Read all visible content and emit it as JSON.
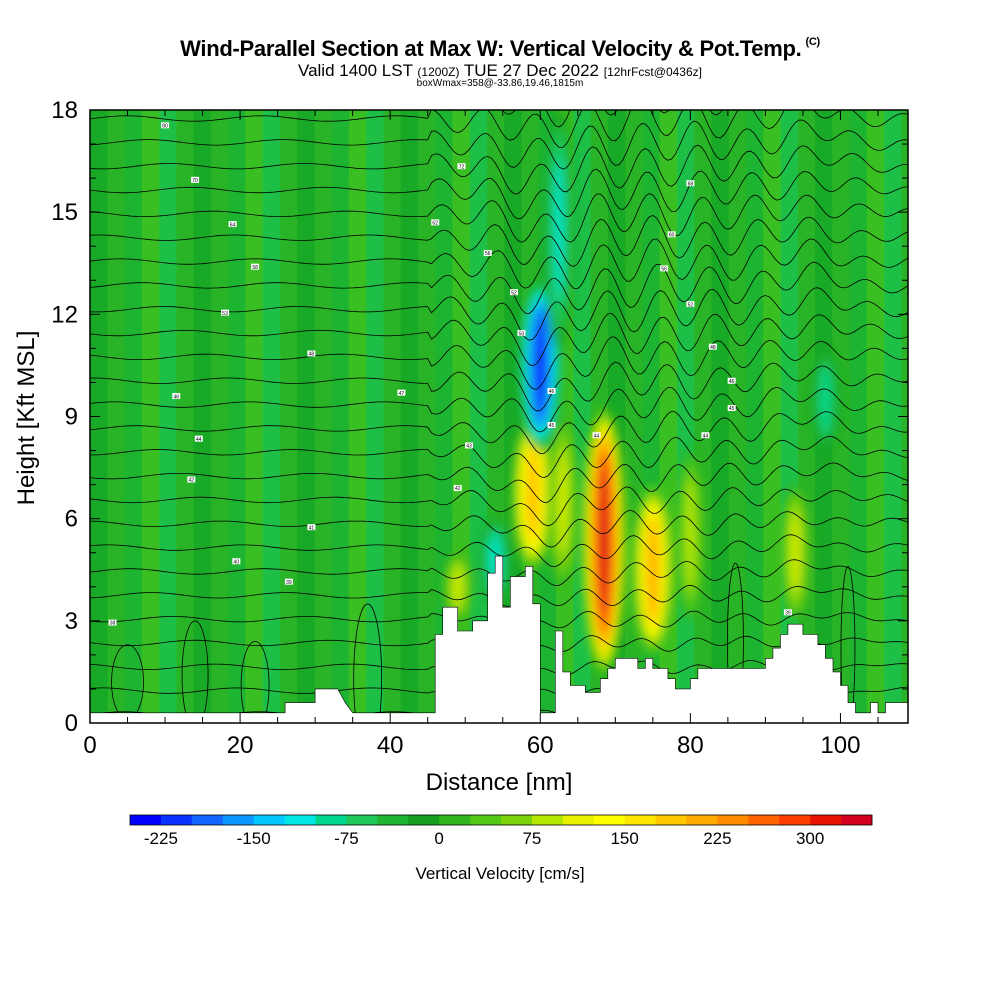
{
  "header": {
    "title": "Wind-Parallel Section at Max W: Vertical Velocity & Pot.Temp.",
    "copyright": "(C)",
    "valid_prefix": "Valid 1400 LST",
    "valid_utc": "(1200Z)",
    "valid_date": "TUE 27 Dec 2022",
    "forecast": "[12hrFcst@0436z]",
    "box_info": "boxWmax=358@-33.86,19.46,1815m"
  },
  "chart_data": {
    "type": "heatmap",
    "title": "Wind-Parallel Section at Max W: Vertical Velocity & Pot.Temp.",
    "xlabel": "Distance [nm]",
    "ylabel": "Height [Kft MSL]",
    "xlim": [
      0,
      109
    ],
    "ylim": [
      0,
      18
    ],
    "xticks": [
      0,
      20,
      40,
      60,
      80,
      100
    ],
    "yticks": [
      0,
      3,
      6,
      9,
      12,
      15,
      18
    ],
    "colorbar": {
      "label": "Vertical Velocity [cm/s]",
      "tick_labels": [
        "-225",
        "-150",
        "-75",
        "0",
        "75",
        "150",
        "225",
        "300"
      ],
      "tick_values": [
        -225,
        -150,
        -75,
        0,
        75,
        150,
        225,
        300
      ],
      "range": [
        -250,
        350
      ],
      "colors": [
        "#0000ff",
        "#0a32ff",
        "#1464ff",
        "#0a96ff",
        "#00c8ff",
        "#00e6e6",
        "#00d68c",
        "#1ec85a",
        "#1eb432",
        "#14a01e",
        "#32b41e",
        "#50c814",
        "#7ad20a",
        "#b4e600",
        "#e6f000",
        "#ffff00",
        "#ffe600",
        "#ffc800",
        "#ffaa00",
        "#ff8c00",
        "#ff6400",
        "#ff3c00",
        "#e61400",
        "#d2001e"
      ]
    },
    "updrafts": [
      {
        "x": 49,
        "z_min": 3,
        "z_max": 5,
        "w": 100
      },
      {
        "x": 59,
        "z_min": 4.5,
        "z_max": 9,
        "w": 200
      },
      {
        "x": 63,
        "z_min": 4,
        "z_max": 9,
        "w": 110
      },
      {
        "x": 68.5,
        "z_min": 1.5,
        "z_max": 9.2,
        "w": 358
      },
      {
        "x": 75,
        "z_min": 2,
        "z_max": 7,
        "w": 220
      },
      {
        "x": 80,
        "z_min": 3,
        "z_max": 8,
        "w": 90
      },
      {
        "x": 94,
        "z_min": 3,
        "z_max": 7,
        "w": 110
      }
    ],
    "downdrafts": [
      {
        "x": 54,
        "z_min": 3.5,
        "z_max": 6,
        "w": -120
      },
      {
        "x": 60,
        "z_min": 8,
        "z_max": 13,
        "w": -230
      },
      {
        "x": 62.5,
        "z_min": 11,
        "z_max": 18,
        "w": -110
      },
      {
        "x": 98,
        "z_min": 8,
        "z_max": 11,
        "w": -100
      }
    ],
    "terrain_profile": [
      [
        0,
        0.3
      ],
      [
        26,
        0.3
      ],
      [
        26,
        0.6
      ],
      [
        30,
        0.6
      ],
      [
        30,
        1.0
      ],
      [
        33,
        1.0
      ],
      [
        34,
        0.6
      ],
      [
        35,
        0.3
      ],
      [
        46,
        0.3
      ],
      [
        46,
        2.6
      ],
      [
        47,
        2.6
      ],
      [
        47,
        3.4
      ],
      [
        49,
        3.4
      ],
      [
        49,
        2.7
      ],
      [
        51,
        2.7
      ],
      [
        51,
        3.0
      ],
      [
        53,
        3.0
      ],
      [
        53,
        4.4
      ],
      [
        54,
        4.4
      ],
      [
        54,
        4.9
      ],
      [
        55,
        4.9
      ],
      [
        55,
        3.4
      ],
      [
        56,
        3.4
      ],
      [
        56,
        4.3
      ],
      [
        58,
        4.3
      ],
      [
        58,
        4.6
      ],
      [
        59,
        4.6
      ],
      [
        59,
        3.5
      ],
      [
        60,
        3.5
      ],
      [
        60,
        0.3
      ],
      [
        62,
        0.3
      ],
      [
        62,
        2.7
      ],
      [
        63,
        2.7
      ],
      [
        63,
        1.5
      ],
      [
        64,
        1.5
      ],
      [
        64,
        1.1
      ],
      [
        66,
        1.1
      ],
      [
        66,
        0.9
      ],
      [
        68,
        0.9
      ],
      [
        68,
        1.3
      ],
      [
        69,
        1.3
      ],
      [
        69,
        1.6
      ],
      [
        70,
        1.6
      ],
      [
        70,
        1.9
      ],
      [
        73,
        1.9
      ],
      [
        73,
        1.6
      ],
      [
        74,
        1.6
      ],
      [
        74,
        1.9
      ],
      [
        75,
        1.9
      ],
      [
        75,
        1.6
      ],
      [
        77,
        1.6
      ],
      [
        77,
        1.3
      ],
      [
        78,
        1.3
      ],
      [
        78,
        1.0
      ],
      [
        80,
        1.0
      ],
      [
        80,
        1.3
      ],
      [
        81,
        1.3
      ],
      [
        81,
        1.6
      ],
      [
        90,
        1.6
      ],
      [
        90,
        1.9
      ],
      [
        91,
        1.9
      ],
      [
        91,
        2.2
      ],
      [
        92,
        2.2
      ],
      [
        92,
        2.6
      ],
      [
        93,
        2.6
      ],
      [
        93,
        2.9
      ],
      [
        95,
        2.9
      ],
      [
        95,
        2.6
      ],
      [
        97,
        2.6
      ],
      [
        97,
        2.3
      ],
      [
        98,
        2.3
      ],
      [
        98,
        1.9
      ],
      [
        99,
        1.9
      ],
      [
        99,
        1.5
      ],
      [
        100,
        1.5
      ],
      [
        100,
        1.1
      ],
      [
        101,
        1.1
      ],
      [
        101,
        0.6
      ],
      [
        102,
        0.6
      ],
      [
        102,
        0.3
      ],
      [
        104,
        0.3
      ],
      [
        104,
        0.6
      ],
      [
        105,
        0.6
      ],
      [
        105,
        0.3
      ],
      [
        106,
        0.3
      ],
      [
        106,
        0.6
      ],
      [
        109,
        0.6
      ]
    ],
    "theta_labels": [
      {
        "x": 3,
        "z": 2.95,
        "text": "38"
      },
      {
        "x": 10,
        "z": 17.55,
        "text": "80"
      },
      {
        "x": 14,
        "z": 15.95,
        "text": "70"
      },
      {
        "x": 19,
        "z": 14.65,
        "text": "64"
      },
      {
        "x": 22,
        "z": 13.4,
        "text": "58"
      },
      {
        "x": 18,
        "z": 12.05,
        "text": "53"
      },
      {
        "x": 29.5,
        "z": 10.85,
        "text": "48"
      },
      {
        "x": 11.5,
        "z": 9.6,
        "text": "46"
      },
      {
        "x": 14.5,
        "z": 8.35,
        "text": "44"
      },
      {
        "x": 13.5,
        "z": 7.15,
        "text": "42"
      },
      {
        "x": 29.5,
        "z": 5.75,
        "text": "41"
      },
      {
        "x": 19.5,
        "z": 4.75,
        "text": "40"
      },
      {
        "x": 26.5,
        "z": 4.15,
        "text": "39"
      },
      {
        "x": 41.5,
        "z": 9.7,
        "text": "47"
      },
      {
        "x": 46,
        "z": 14.7,
        "text": "62"
      },
      {
        "x": 49.5,
        "z": 16.35,
        "text": "72"
      },
      {
        "x": 53,
        "z": 13.8,
        "text": "56"
      },
      {
        "x": 56.5,
        "z": 12.65,
        "text": "52"
      },
      {
        "x": 57.5,
        "z": 11.45,
        "text": "50"
      },
      {
        "x": 61.5,
        "z": 9.75,
        "text": "46"
      },
      {
        "x": 61.5,
        "z": 8.75,
        "text": "45"
      },
      {
        "x": 50.5,
        "z": 8.15,
        "text": "43"
      },
      {
        "x": 49,
        "z": 6.9,
        "text": "42"
      },
      {
        "x": 67.5,
        "z": 8.45,
        "text": "44"
      },
      {
        "x": 80,
        "z": 15.85,
        "text": "68"
      },
      {
        "x": 77.5,
        "z": 14.35,
        "text": "60"
      },
      {
        "x": 76.5,
        "z": 13.35,
        "text": "56"
      },
      {
        "x": 80,
        "z": 12.3,
        "text": "52"
      },
      {
        "x": 83,
        "z": 11.05,
        "text": "48"
      },
      {
        "x": 85.5,
        "z": 10.05,
        "text": "46"
      },
      {
        "x": 85.5,
        "z": 9.25,
        "text": "45"
      },
      {
        "x": 82,
        "z": 8.45,
        "text": "44"
      },
      {
        "x": 93,
        "z": 3.25,
        "text": "39"
      }
    ]
  }
}
